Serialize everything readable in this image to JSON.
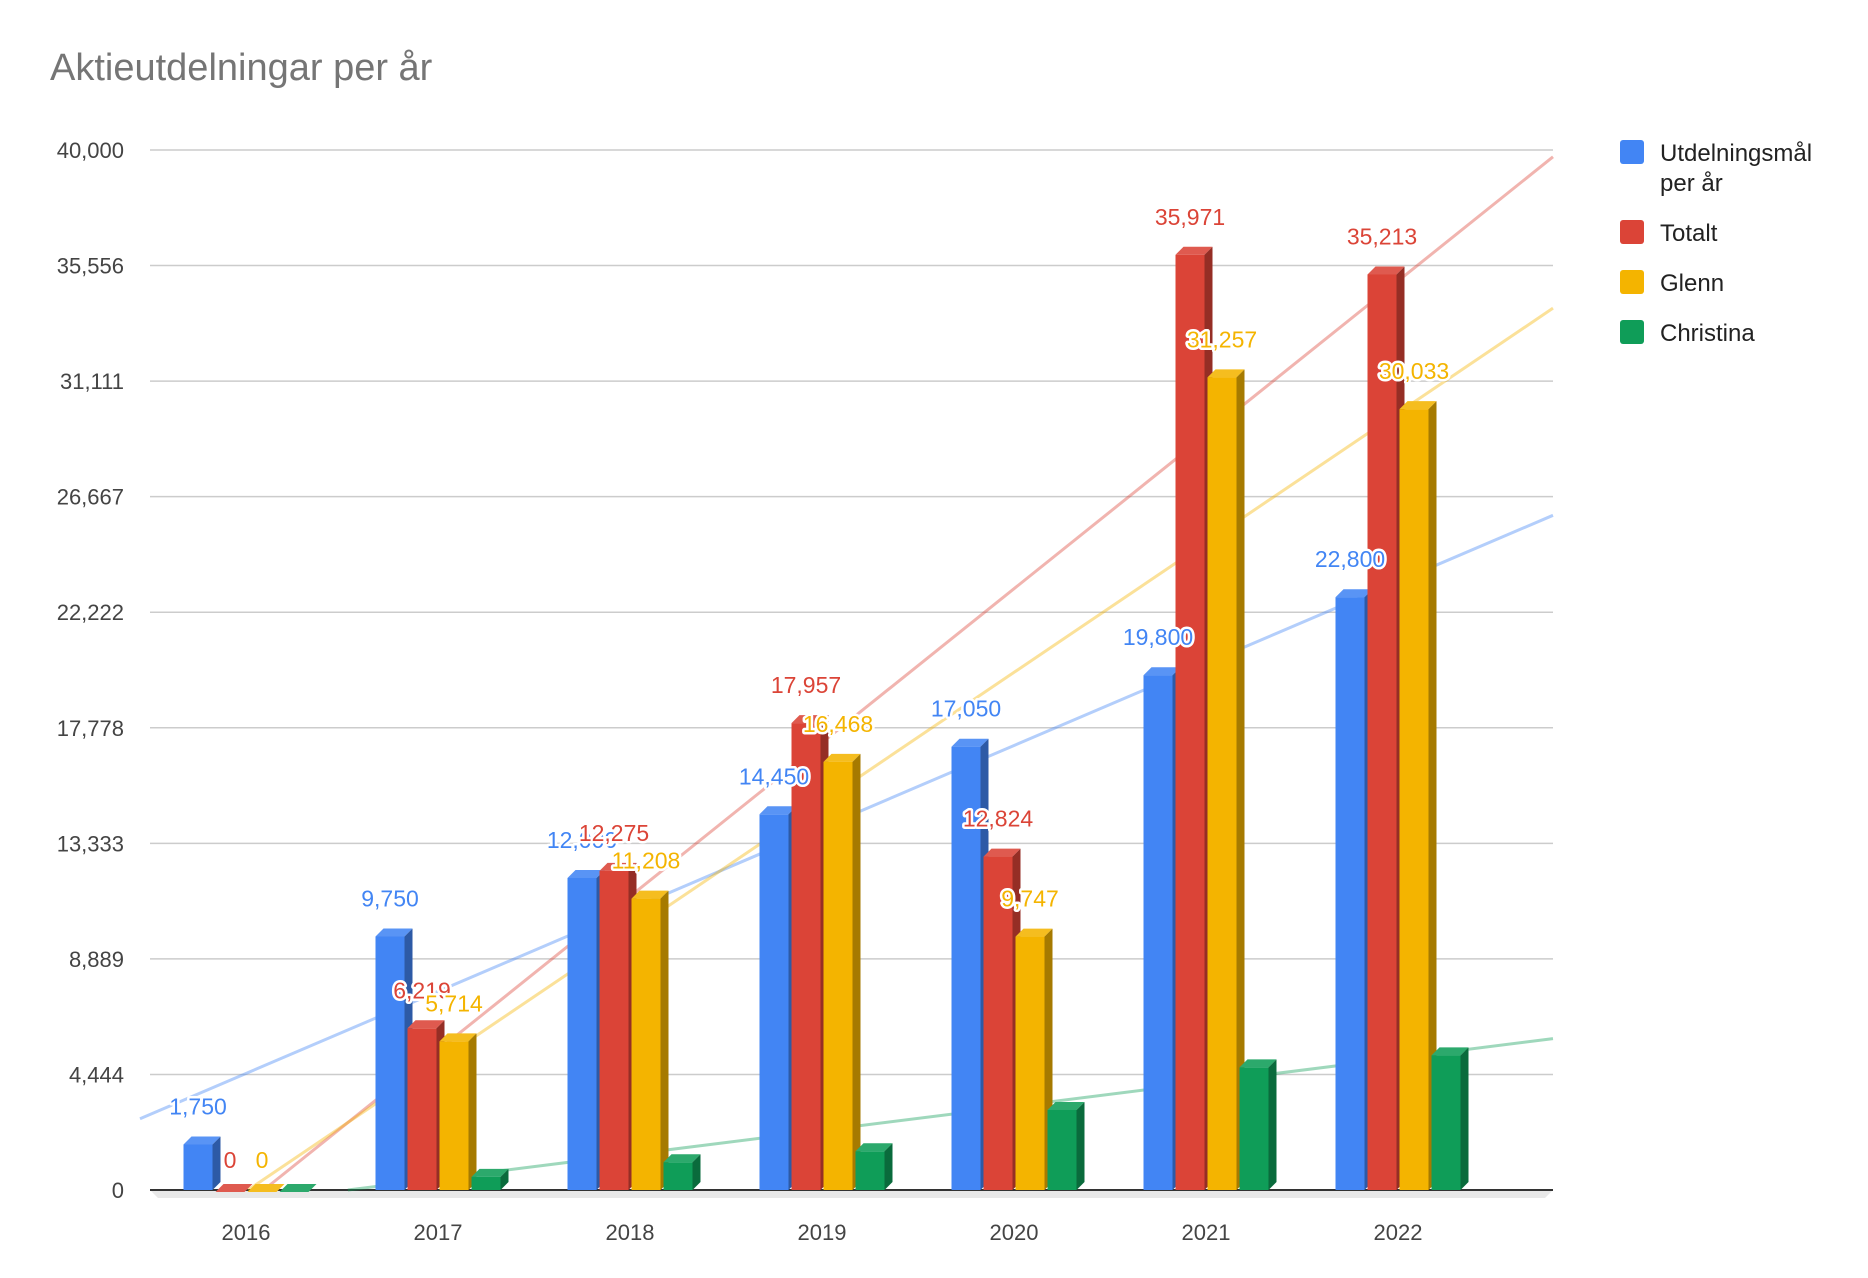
{
  "chart_data": {
    "type": "bar",
    "title": "Aktieutdelningar per år",
    "categories": [
      "2016",
      "2017",
      "2018",
      "2019",
      "2020",
      "2021",
      "2022"
    ],
    "series": [
      {
        "name": "Utdelningsmål per år",
        "color": "#4285f4",
        "values": [
          1750,
          9750,
          12000,
          14450,
          17050,
          19800,
          22800
        ]
      },
      {
        "name": "Totalt",
        "color": "#db4437",
        "values": [
          0,
          6219,
          12275,
          17957,
          12824,
          35971,
          35213
        ]
      },
      {
        "name": "Glenn",
        "color": "#f4b400",
        "values": [
          0,
          5714,
          11208,
          16468,
          9747,
          31257,
          30033
        ]
      },
      {
        "name": "Christina",
        "color": "#0f9d58",
        "values": [
          0,
          505,
          1067,
          1489,
          3077,
          4714,
          5180
        ]
      }
    ],
    "data_labels": [
      [
        "1,750",
        "9,750",
        "12,000",
        "14,450",
        "17,050",
        "19,800",
        "22,800"
      ],
      [
        "0",
        "6,219",
        "12,275",
        "17,957",
        "12,824",
        "35,971",
        "35,213"
      ],
      [
        "0",
        "5,714",
        "11,208",
        "16,468",
        "9,747",
        "31,257",
        "30,033"
      ],
      []
    ],
    "yticks": [
      "0",
      "4,444",
      "8,889",
      "13,333",
      "17,778",
      "22,222",
      "26,667",
      "31,111",
      "35,556",
      "40,000"
    ],
    "ylim": [
      0,
      40000
    ],
    "trendlines": true,
    "grid": true,
    "legend_position": "right",
    "style": "3d"
  }
}
